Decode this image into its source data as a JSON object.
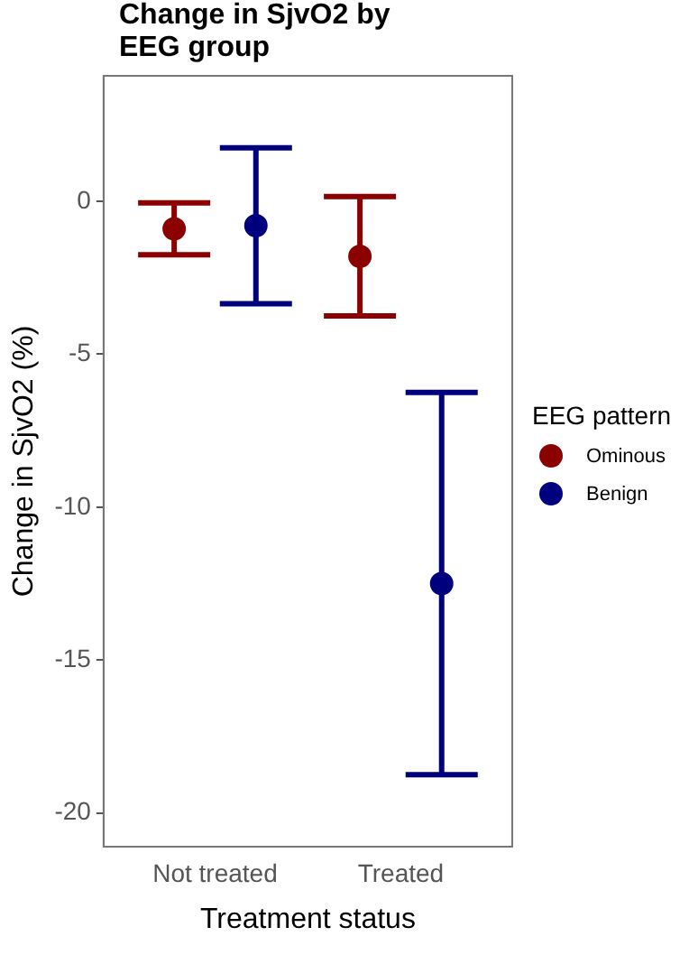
{
  "chart_data": {
    "type": "scatter",
    "title": "Change in SjvO2 by EEG group",
    "xlabel": "Treatment status",
    "ylabel": "Change in SjvO2 (%)",
    "legend_title": "EEG pattern",
    "categories": [
      "Not treated",
      "Treated"
    ],
    "series": [
      {
        "name": "Ominous",
        "color": "#8b0000",
        "values": [
          -0.9,
          -1.8
        ],
        "errors": [
          0.85,
          1.95
        ]
      },
      {
        "name": "Benign",
        "color": "#00007f",
        "values": [
          -0.8,
          -12.5
        ],
        "errors": [
          2.55,
          6.25
        ]
      }
    ],
    "ylim": [
      -21.1,
      4.1
    ],
    "yticks": [
      -20,
      -15,
      -10,
      -5,
      0
    ],
    "grid": false,
    "legend": "right",
    "marker": "circle"
  }
}
